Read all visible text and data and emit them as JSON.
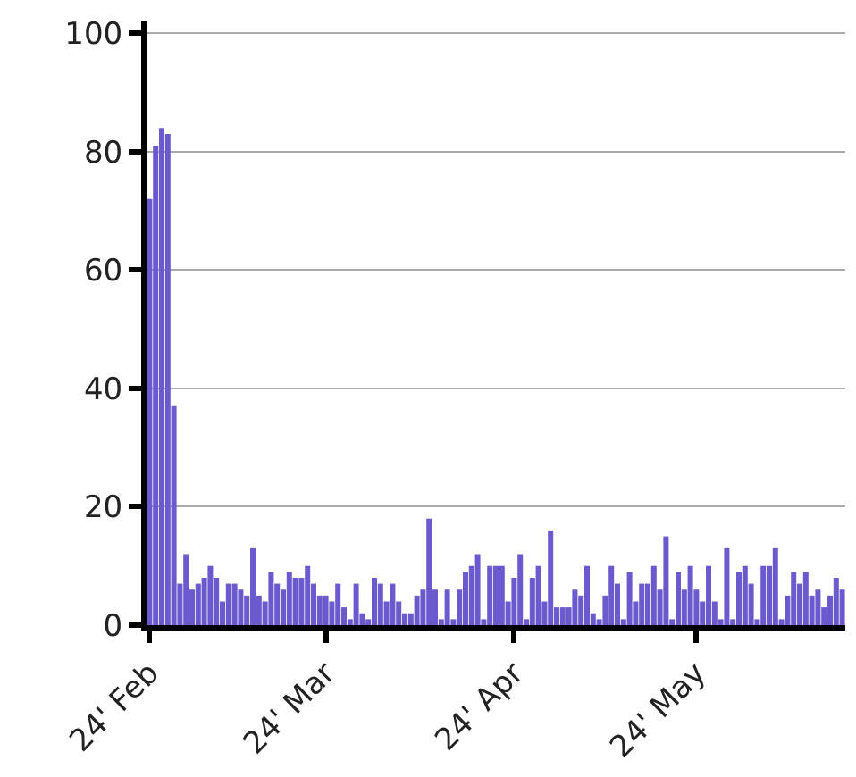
{
  "chart_data": {
    "type": "bar",
    "x": [
      "2024-02-01",
      "2024-02-02",
      "2024-02-03",
      "2024-02-04",
      "2024-02-05",
      "2024-02-06",
      "2024-02-07",
      "2024-02-08",
      "2024-02-09",
      "2024-02-10",
      "2024-02-11",
      "2024-02-12",
      "2024-02-13",
      "2024-02-14",
      "2024-02-15",
      "2024-02-16",
      "2024-02-17",
      "2024-02-18",
      "2024-02-19",
      "2024-02-20",
      "2024-02-21",
      "2024-02-22",
      "2024-02-23",
      "2024-02-24",
      "2024-02-25",
      "2024-02-26",
      "2024-02-27",
      "2024-02-28",
      "2024-02-29",
      "2024-03-01",
      "2024-03-02",
      "2024-03-03",
      "2024-03-04",
      "2024-03-05",
      "2024-03-06",
      "2024-03-07",
      "2024-03-08",
      "2024-03-09",
      "2024-03-10",
      "2024-03-11",
      "2024-03-12",
      "2024-03-13",
      "2024-03-14",
      "2024-03-15",
      "2024-03-16",
      "2024-03-17",
      "2024-03-18",
      "2024-03-19",
      "2024-03-20",
      "2024-03-21",
      "2024-03-22",
      "2024-03-23",
      "2024-03-24",
      "2024-03-25",
      "2024-03-26",
      "2024-03-27",
      "2024-03-28",
      "2024-03-29",
      "2024-03-30",
      "2024-03-31",
      "2024-04-01",
      "2024-04-02",
      "2024-04-03",
      "2024-04-04",
      "2024-04-05",
      "2024-04-06",
      "2024-04-07",
      "2024-04-08",
      "2024-04-09",
      "2024-04-10",
      "2024-04-11",
      "2024-04-12",
      "2024-04-13",
      "2024-04-14",
      "2024-04-15",
      "2024-04-16",
      "2024-04-17",
      "2024-04-18",
      "2024-04-19",
      "2024-04-20",
      "2024-04-21",
      "2024-04-22",
      "2024-04-23",
      "2024-04-24",
      "2024-04-25",
      "2024-04-26",
      "2024-04-27",
      "2024-04-28",
      "2024-04-29",
      "2024-04-30",
      "2024-05-01",
      "2024-05-02",
      "2024-05-03",
      "2024-05-04",
      "2024-05-05",
      "2024-05-06",
      "2024-05-07",
      "2024-05-08",
      "2024-05-09",
      "2024-05-10",
      "2024-05-11",
      "2024-05-12",
      "2024-05-13",
      "2024-05-14",
      "2024-05-15",
      "2024-05-16",
      "2024-05-17",
      "2024-05-18",
      "2024-05-19",
      "2024-05-20",
      "2024-05-21",
      "2024-05-22",
      "2024-05-23",
      "2024-05-24",
      "2024-05-25"
    ],
    "values": [
      72,
      81,
      84,
      83,
      37,
      7,
      12,
      6,
      7,
      8,
      10,
      8,
      4,
      7,
      7,
      6,
      5,
      13,
      5,
      4,
      9,
      7,
      6,
      9,
      8,
      8,
      10,
      7,
      5,
      5,
      4,
      7,
      3,
      1,
      7,
      2,
      1,
      8,
      7,
      4,
      7,
      4,
      2,
      2,
      5,
      6,
      18,
      6,
      1,
      6,
      1,
      6,
      9,
      10,
      12,
      1,
      10,
      10,
      10,
      4,
      8,
      12,
      1,
      8,
      10,
      4,
      16,
      3,
      3,
      3,
      6,
      5,
      10,
      2,
      1,
      5,
      10,
      7,
      1,
      9,
      4,
      7,
      7,
      10,
      6,
      15,
      1,
      9,
      6,
      10,
      6,
      4,
      10,
      4,
      1,
      13,
      1,
      9,
      10,
      7,
      1,
      10,
      10,
      13,
      1,
      5,
      9,
      7,
      9,
      5,
      6,
      3,
      5,
      8,
      6
    ],
    "color": "#6a5acd",
    "xlim": [
      "2024-01-31T12:00",
      "2024-05-25T12:00"
    ],
    "xticks": [
      {
        "value": "2024-02-01",
        "label": "24' Feb"
      },
      {
        "value": "2024-03-01",
        "label": "24' Mar"
      },
      {
        "value": "2024-04-01",
        "label": "24' Apr"
      },
      {
        "value": "2024-05-01",
        "label": "24' May"
      }
    ],
    "ylim": [
      0,
      102
    ],
    "yticks": [
      0,
      20,
      40,
      60,
      80,
      100
    ],
    "grid": "y",
    "legend": false
  }
}
